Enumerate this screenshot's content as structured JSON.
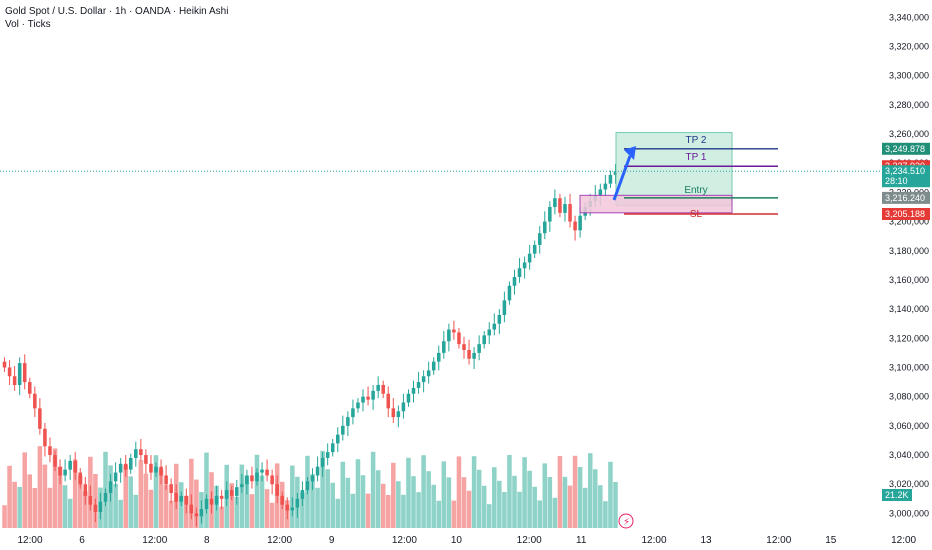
{
  "header": {
    "title": "Gold Spot / U.S. Dollar · 1h · OANDA · Heikin Ashi",
    "volume_label": "Vol · Ticks"
  },
  "colors": {
    "up": "#26a69a",
    "down": "#ef5350",
    "vol_up": "#8fd3c8",
    "vol_down": "#f5a3a3",
    "tp_fill": "#c9ecdf",
    "tp_border": "#5fc2a1",
    "sl_fill": "#f3c7da",
    "sl_border": "#9c27b0",
    "arrow": "#2962ff",
    "last_price_line": "#26a69a"
  },
  "chart_data": {
    "type": "candlestick",
    "y_axis": {
      "ylim": [
        2990,
        3345
      ],
      "ticks": [
        "3,340,000",
        "3,320,000",
        "3,300,000",
        "3,280,000",
        "3,260,000",
        "3,240,000",
        "3,220,000",
        "3,200,000",
        "3,180,000",
        "3,160,000",
        "3,140,000",
        "3,120,000",
        "3,100,000",
        "3,080,000",
        "3,060,000",
        "3,040,000",
        "3,020,000",
        "3,000,000"
      ],
      "tick_values": [
        3340,
        3320,
        3300,
        3280,
        3260,
        3240,
        3220,
        3200,
        3180,
        3160,
        3140,
        3120,
        3100,
        3080,
        3060,
        3040,
        3020,
        3000
      ]
    },
    "x_axis": {
      "ticks": [
        "12:00",
        "6",
        "12:00",
        "8",
        "12:00",
        "9",
        "12:00",
        "10",
        "12:00",
        "11",
        "12:00",
        "13",
        "12:00",
        "15",
        "12:00"
      ],
      "tick_pos": [
        5,
        10,
        17,
        22,
        29,
        34,
        41,
        46,
        53,
        58,
        65,
        70,
        77,
        82,
        89
      ]
    },
    "price_close_series": [
      3100,
      3094,
      3088,
      3103,
      3090,
      3082,
      3072,
      3058,
      3046,
      3040,
      3032,
      3026,
      3030,
      3036,
      3028,
      3020,
      3012,
      3006,
      3001,
      3008,
      3014,
      3022,
      3028,
      3034,
      3030,
      3038,
      3044,
      3040,
      3034,
      3028,
      3032,
      3026,
      3020,
      3014,
      3008,
      3012,
      3006,
      3000,
      2998,
      3003,
      3010,
      3006,
      3012,
      3010,
      3016,
      3012,
      3018,
      3020,
      3026,
      3022,
      3028,
      3030,
      3026,
      3020,
      3012,
      3006,
      3002,
      3004,
      3010,
      3016,
      3022,
      3026,
      3032,
      3038,
      3042,
      3048,
      3054,
      3060,
      3066,
      3072,
      3076,
      3080,
      3078,
      3084,
      3088,
      3082,
      3072,
      3066,
      3070,
      3076,
      3082,
      3086,
      3090,
      3094,
      3098,
      3104,
      3110,
      3118,
      3126,
      3124,
      3116,
      3112,
      3106,
      3110,
      3116,
      3122,
      3126,
      3130,
      3136,
      3146,
      3156,
      3162,
      3168,
      3172,
      3178,
      3184,
      3192,
      3200,
      3210,
      3216,
      3206,
      3212,
      3200,
      3194,
      3204,
      3210,
      3214,
      3218,
      3222,
      3226,
      3232,
      3234.5
    ],
    "volume_ticks": [
      {
        "value": "21.2K",
        "label": "21.2K"
      }
    ],
    "annotations": {
      "tp2": {
        "label": "TP 2",
        "price": 3249.878,
        "price_label": "3,249.878"
      },
      "tp1": {
        "label": "TP 1",
        "price": 3237.92,
        "price_label": "3,237.920"
      },
      "entry": {
        "label": "Entry",
        "price": 3216.24,
        "price_label": "3,216.240"
      },
      "sl": {
        "label": "SL",
        "price": 3205.188,
        "price_label": "3,205.188"
      },
      "last_price": {
        "price": 3234.51,
        "price_label": "3,234.510",
        "countdown": "28:10"
      },
      "zones": {
        "tp_box_top": 3261,
        "tp_box_bottom": 3211,
        "entry_box_top": 3218,
        "entry_box_bottom": 3210,
        "sl_box_top": 3211,
        "sl_box_bottom": 3206
      }
    }
  }
}
